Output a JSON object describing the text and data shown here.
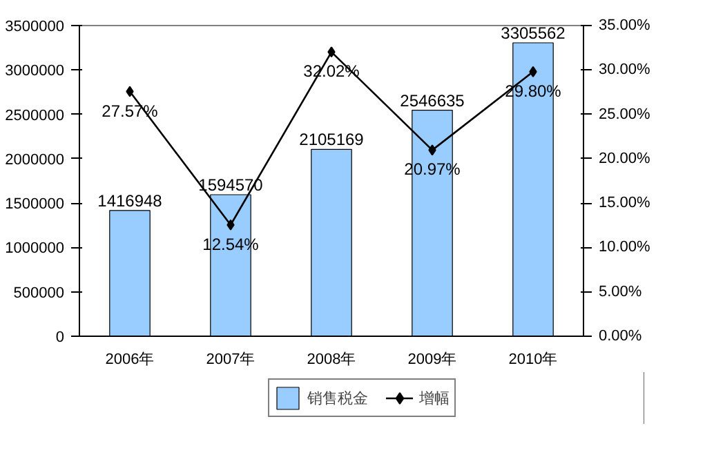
{
  "chart_data": {
    "type": "bar",
    "categories": [
      "2006年",
      "2007年",
      "2008年",
      "2009年",
      "2010年"
    ],
    "series": [
      {
        "name": "销售税金",
        "color": "#99ccff",
        "values": [
          1416948,
          1594570,
          2105169,
          2546635,
          3305562
        ],
        "value_labels": [
          "1416948",
          "1594570",
          "2105169",
          "2546635",
          "3305562"
        ]
      },
      {
        "name": "增幅",
        "type": "line",
        "axis": "y2",
        "color": "#000000",
        "values": [
          27.57,
          12.54,
          32.02,
          20.97,
          29.8
        ],
        "value_labels": [
          "27.57%",
          "12.54%",
          "32.02%",
          "20.97%",
          "29.80%"
        ]
      }
    ],
    "ylim": [
      0,
      3500000
    ],
    "yticks": [
      0,
      500000,
      1000000,
      1500000,
      2000000,
      2500000,
      3000000,
      3500000
    ],
    "y2lim": [
      0,
      35
    ],
    "y2ticks": [
      {
        "value": 0,
        "label": "0.00%"
      },
      {
        "value": 5,
        "label": "5.00%"
      },
      {
        "value": 10,
        "label": "10.00%"
      },
      {
        "value": 15,
        "label": "15.00%"
      },
      {
        "value": 20,
        "label": "20.00%"
      },
      {
        "value": 25,
        "label": "25.00%"
      },
      {
        "value": 30,
        "label": "30.00%"
      },
      {
        "value": 35,
        "label": "35.00%"
      }
    ],
    "legend": "bottom",
    "marker": "diamond",
    "line_style": "solid"
  }
}
